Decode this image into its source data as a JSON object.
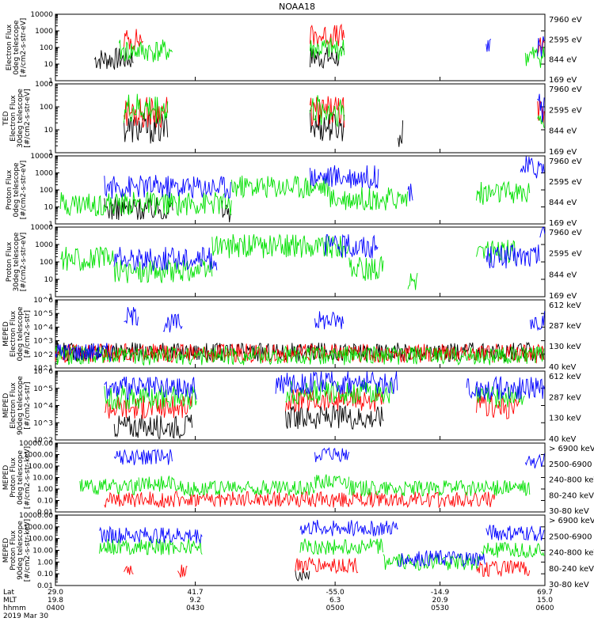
{
  "title": "NOAA18",
  "colors": {
    "black": "#000000",
    "red": "#ff0000",
    "green": "#00e000",
    "blue": "#0000ff",
    "magenta": "#e000e0"
  },
  "chart_data": [
    {
      "type": "line",
      "ylabel": [
        "Electron Flux",
        "0deg telescope",
        "[#/cm2-s-str-eV]"
      ],
      "log": true,
      "ylim": [
        1,
        10000
      ],
      "ticks": [
        {
          "v": 1,
          "l": "1"
        },
        {
          "v": 10,
          "l": "10"
        },
        {
          "v": 100,
          "l": "100"
        },
        {
          "v": 1000,
          "l": "1000"
        },
        {
          "v": 10000,
          "l": "10000"
        }
      ],
      "series": [
        {
          "name": "7960 eV",
          "color": "black",
          "segments": [
            [
              0.08,
              0.16,
              20
            ],
            [
              0.52,
              0.59,
              25
            ]
          ]
        },
        {
          "name": "2595 eV",
          "color": "red",
          "segments": [
            [
              0.14,
              0.18,
              300
            ],
            [
              0.52,
              0.59,
              500
            ],
            [
              0.985,
              1.0,
              80
            ]
          ]
        },
        {
          "name": "844 eV",
          "color": "green",
          "segments": [
            [
              0.13,
              0.24,
              60
            ],
            [
              0.52,
              0.59,
              80
            ],
            [
              0.96,
              1.0,
              30
            ]
          ]
        },
        {
          "name": "169 eV",
          "color": "blue",
          "segments": [
            [
              0.88,
              0.89,
              150
            ],
            [
              0.985,
              1.0,
              120
            ]
          ]
        }
      ]
    },
    {
      "type": "line",
      "ylabel": [
        "TED",
        "Electron Flux",
        "30deg telescope",
        "[#/cm2-s-str-eV]"
      ],
      "log": true,
      "ylim": [
        1,
        1000
      ],
      "ticks": [
        {
          "v": 1,
          "l": "1"
        },
        {
          "v": 10,
          "l": "10"
        },
        {
          "v": 100,
          "l": "100"
        },
        {
          "v": 1000,
          "l": "1000"
        }
      ],
      "series": [
        {
          "name": "7960 eV",
          "color": "black",
          "segments": [
            [
              0.14,
              0.23,
              12
            ],
            [
              0.52,
              0.59,
              15
            ],
            [
              0.7,
              0.71,
              6
            ]
          ]
        },
        {
          "name": "2595 eV",
          "color": "red",
          "segments": [
            [
              0.14,
              0.23,
              60
            ],
            [
              0.52,
              0.59,
              60
            ],
            [
              0.985,
              1.0,
              40
            ]
          ]
        },
        {
          "name": "844 eV",
          "color": "green",
          "segments": [
            [
              0.14,
              0.23,
              80
            ],
            [
              0.52,
              0.59,
              70
            ],
            [
              0.985,
              1.0,
              30
            ]
          ]
        },
        {
          "name": "169 eV",
          "color": "blue",
          "segments": [
            [
              0.985,
              1.0,
              100
            ]
          ]
        }
      ]
    },
    {
      "type": "line",
      "ylabel": [
        "Proton Flux",
        "0deg telescope",
        "[#/cm2-s-str-eV]"
      ],
      "log": true,
      "ylim": [
        1,
        10000
      ],
      "ticks": [
        {
          "v": 1,
          "l": "1"
        },
        {
          "v": 10,
          "l": "10"
        },
        {
          "v": 100,
          "l": "100"
        },
        {
          "v": 1000,
          "l": "1000"
        },
        {
          "v": 10000,
          "l": "10000"
        }
      ],
      "series": [
        {
          "name": "7960 eV",
          "color": "black",
          "segments": [
            [
              0.1,
              0.24,
              8
            ],
            [
              0.34,
              0.36,
              6
            ]
          ]
        },
        {
          "name": "2595 eV",
          "color": "red",
          "segments": []
        },
        {
          "name": "844 eV",
          "color": "green",
          "segments": [
            [
              0.01,
              0.36,
              15
            ],
            [
              0.36,
              0.56,
              150
            ],
            [
              0.56,
              0.72,
              30
            ],
            [
              0.86,
              0.97,
              60
            ]
          ]
        },
        {
          "name": "169 eV",
          "color": "blue",
          "segments": [
            [
              0.1,
              0.36,
              150
            ],
            [
              0.52,
              0.66,
              600
            ],
            [
              0.72,
              0.73,
              100
            ],
            [
              0.95,
              1.0,
              2000
            ]
          ]
        }
      ]
    },
    {
      "type": "line",
      "ylabel": [
        "Proton Flux",
        "30deg telescope",
        "[#/cm2-s-str-eV]"
      ],
      "log": true,
      "ylim": [
        1,
        10000
      ],
      "ticks": [
        {
          "v": 1,
          "l": "1"
        },
        {
          "v": 10,
          "l": "10"
        },
        {
          "v": 100,
          "l": "100"
        },
        {
          "v": 1000,
          "l": "1000"
        },
        {
          "v": 10000,
          "l": "10000"
        }
      ],
      "series": [
        {
          "name": "7960 eV",
          "color": "black",
          "segments": []
        },
        {
          "name": "2595 eV",
          "color": "red",
          "segments": []
        },
        {
          "name": "844 eV",
          "color": "green",
          "segments": [
            [
              0.01,
              0.12,
              150
            ],
            [
              0.12,
              0.32,
              30
            ],
            [
              0.32,
              0.6,
              800
            ],
            [
              0.6,
              0.67,
              40
            ],
            [
              0.72,
              0.74,
              12
            ],
            [
              0.86,
              0.94,
              400
            ]
          ]
        },
        {
          "name": "169 eV",
          "color": "blue",
          "segments": [
            [
              0.12,
              0.33,
              150
            ],
            [
              0.55,
              0.66,
              800
            ],
            [
              0.88,
              0.99,
              200
            ],
            [
              0.99,
              1.0,
              5000
            ]
          ]
        }
      ]
    },
    {
      "type": "line",
      "ylabel": [
        "MEPED",
        "Electron Flux",
        "0deg telescope",
        "[#/cm2-s-str]"
      ],
      "log": true,
      "ylim": [
        10,
        1000000
      ],
      "ticks": [
        {
          "v": 10,
          "l": "10^1"
        },
        {
          "v": 100,
          "l": "10^2"
        },
        {
          "v": 1000,
          "l": "10^3"
        },
        {
          "v": 10000,
          "l": "10^4"
        },
        {
          "v": 100000,
          "l": "10^5"
        },
        {
          "v": 1000000,
          "l": "10^6"
        }
      ],
      "series": [
        {
          "name": "612 keV",
          "color": "black",
          "segments": [
            [
              0.0,
              1.0,
              150
            ]
          ]
        },
        {
          "name": "287 keV",
          "color": "red",
          "segments": [
            [
              0.0,
              1.0,
              120
            ]
          ]
        },
        {
          "name": "130 keV",
          "color": "green",
          "segments": [
            [
              0.0,
              1.0,
              80
            ]
          ]
        },
        {
          "name": "40 keV",
          "color": "blue",
          "segments": [
            [
              0.0,
              0.12,
              150
            ],
            [
              0.14,
              0.17,
              60000
            ],
            [
              0.22,
              0.26,
              20000
            ],
            [
              0.53,
              0.59,
              30000
            ],
            [
              0.97,
              1.0,
              30000
            ]
          ]
        }
      ]
    },
    {
      "type": "line",
      "ylabel": [
        "MEPED",
        "Electron Flux",
        "90deg telescope",
        "[#/cm2-s-str]"
      ],
      "log": true,
      "ylim": [
        100,
        1000000
      ],
      "ticks": [
        {
          "v": 100,
          "l": "10^2"
        },
        {
          "v": 1000,
          "l": "10^3"
        },
        {
          "v": 10000,
          "l": "10^4"
        },
        {
          "v": 100000,
          "l": "10^5"
        },
        {
          "v": 1000000,
          "l": "10^6"
        }
      ],
      "series": [
        {
          "name": "612 keV",
          "color": "black",
          "segments": [
            [
              0.12,
              0.28,
              600
            ],
            [
              0.47,
              0.67,
              2000
            ]
          ]
        },
        {
          "name": "287 keV",
          "color": "red",
          "segments": [
            [
              0.1,
              0.28,
              8000
            ],
            [
              0.47,
              0.67,
              20000
            ],
            [
              0.86,
              0.95,
              8000
            ]
          ]
        },
        {
          "name": "130 keV",
          "color": "green",
          "segments": [
            [
              0.1,
              0.29,
              30000
            ],
            [
              0.47,
              0.69,
              60000
            ],
            [
              0.86,
              0.96,
              30000
            ]
          ]
        },
        {
          "name": "40 keV",
          "color": "blue",
          "segments": [
            [
              0.1,
              0.29,
              100000
            ],
            [
              0.45,
              0.7,
              200000
            ],
            [
              0.84,
              1.0,
              100000
            ]
          ]
        }
      ]
    },
    {
      "type": "line",
      "ylabel": [
        "MEPED",
        "Proton Flux",
        "0deg telescope",
        "[#/cm2-s-str-keV]"
      ],
      "log": true,
      "ylim": [
        0.01,
        10000
      ],
      "ticks": [
        {
          "v": 0.01,
          "l": "0.01"
        },
        {
          "v": 0.1,
          "l": "0.10"
        },
        {
          "v": 1,
          "l": "1.00"
        },
        {
          "v": 10,
          "l": "10.00"
        },
        {
          "v": 100,
          "l": "100.00"
        },
        {
          "v": 1000,
          "l": "1000.00"
        },
        {
          "v": 10000,
          "l": "10000.00"
        }
      ],
      "series": [
        {
          "name": "> 6900 keV",
          "color": "magenta",
          "segments": []
        },
        {
          "name": "2500-6900",
          "color": "black",
          "segments": []
        },
        {
          "name": "240-800 keV",
          "color": "red",
          "segments": [
            [
              0.1,
              0.9,
              0.12
            ]
          ]
        },
        {
          "name": "80-240 keV",
          "color": "green",
          "segments": [
            [
              0.05,
              0.17,
              1.5
            ],
            [
              0.17,
              0.25,
              3
            ],
            [
              0.25,
              0.53,
              1.2
            ],
            [
              0.53,
              0.6,
              5
            ],
            [
              0.6,
              0.97,
              1.2
            ]
          ]
        },
        {
          "name": "30-80 keV",
          "color": "blue",
          "segments": [
            [
              0.12,
              0.24,
              600
            ],
            [
              0.53,
              0.6,
              800
            ],
            [
              0.96,
              1.0,
              300
            ]
          ]
        }
      ]
    },
    {
      "type": "line",
      "ylabel": [
        "MEPED",
        "Proton Flux",
        "90deg telescope",
        "[#/cm2-s-str-keV]"
      ],
      "log": true,
      "ylim": [
        0.01,
        10000
      ],
      "ticks": [
        {
          "v": 0.01,
          "l": "0.01"
        },
        {
          "v": 0.1,
          "l": "0.10"
        },
        {
          "v": 1,
          "l": "1.00"
        },
        {
          "v": 10,
          "l": "10.00"
        },
        {
          "v": 100,
          "l": "100.00"
        },
        {
          "v": 1000,
          "l": "1000.00"
        },
        {
          "v": 10000,
          "l": "10000.00"
        }
      ],
      "series": [
        {
          "name": "> 6900 keV",
          "color": "magenta",
          "segments": []
        },
        {
          "name": "2500-6900",
          "color": "black",
          "segments": [
            [
              0.49,
              0.52,
              0.1
            ]
          ]
        },
        {
          "name": "240-800 keV",
          "color": "red",
          "segments": [
            [
              0.14,
              0.16,
              0.2
            ],
            [
              0.25,
              0.27,
              0.2
            ],
            [
              0.49,
              0.62,
              0.5
            ],
            [
              0.86,
              0.97,
              0.3
            ]
          ]
        },
        {
          "name": "80-240 keV",
          "color": "green",
          "segments": [
            [
              0.09,
              0.3,
              20
            ],
            [
              0.5,
              0.67,
              20
            ],
            [
              0.67,
              0.87,
              1
            ],
            [
              0.87,
              1.0,
              10
            ]
          ]
        },
        {
          "name": "30-80 keV",
          "color": "blue",
          "segments": [
            [
              0.09,
              0.3,
              200
            ],
            [
              0.5,
              0.7,
              800
            ],
            [
              0.7,
              0.88,
              2
            ],
            [
              0.88,
              1.0,
              300
            ]
          ]
        }
      ]
    }
  ],
  "xaxis": {
    "row_labels": [
      "Lat",
      "MLT",
      "hhmm"
    ],
    "ticks": [
      {
        "f": 0.0,
        "lat": "29.0",
        "mlt": "19.8",
        "time": "0400"
      },
      {
        "f": 0.2857,
        "lat": "41.7",
        "mlt": "9.2",
        "time": "0430"
      },
      {
        "f": 0.5714,
        "lat": "-55.0",
        "mlt": "6.3",
        "time": "0500"
      },
      {
        "f": 0.7857,
        "lat": "-14.9",
        "mlt": "20.9",
        "time": "0530"
      },
      {
        "f": 1.0,
        "lat": "69.7",
        "mlt": "15.0",
        "time": "0600"
      }
    ],
    "date": "2019 Mar 30"
  }
}
